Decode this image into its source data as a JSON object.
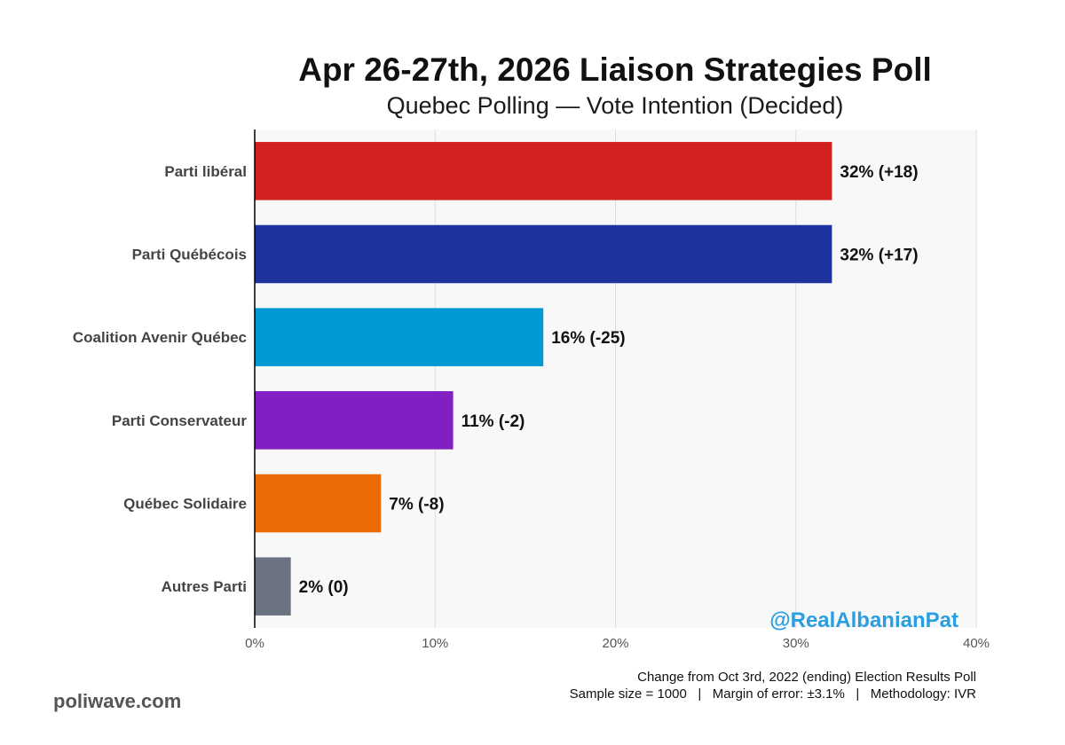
{
  "chart_data": {
    "type": "bar",
    "orientation": "horizontal",
    "title": "Apr 26-27th, 2026 Liaison Strategies Poll",
    "subtitle": "Quebec Polling — Vote Intention (Decided)",
    "categories": [
      "Parti libéral",
      "Parti Québécois",
      "Coalition Avenir Québec",
      "Parti Conservateur",
      "Québec Solidaire",
      "Autres Parti"
    ],
    "values": [
      32,
      32,
      16,
      11,
      7,
      2
    ],
    "data_labels": [
      "32% (+18)",
      "32% (+17)",
      "16% (-25)",
      "11% (-2)",
      "7% (-8)",
      "2% (0)"
    ],
    "colors": [
      "#d32020",
      "#1f339e",
      "#0199d3",
      "#821fc3",
      "#eb6a03",
      "#6b7280"
    ],
    "xlim": [
      0,
      40
    ],
    "xticks": [
      0,
      10,
      20,
      30,
      40
    ],
    "xtick_labels": [
      "0%",
      "10%",
      "20%",
      "30%",
      "40%"
    ],
    "grid": "vertical",
    "legend": "none"
  },
  "watermark": "@RealAlbanianPat",
  "footer": {
    "line1": "Change from Oct 3rd, 2022 (ending) Election Results Poll",
    "line2": "Sample size = 1000   |   Margin of error: ±3.1%   |   Methodology: IVR"
  },
  "brand": "poliwave.com",
  "colors": {
    "panel_background": "#f8f8f8",
    "gridline": "#dddddd",
    "watermark": "#2a9fe0"
  }
}
